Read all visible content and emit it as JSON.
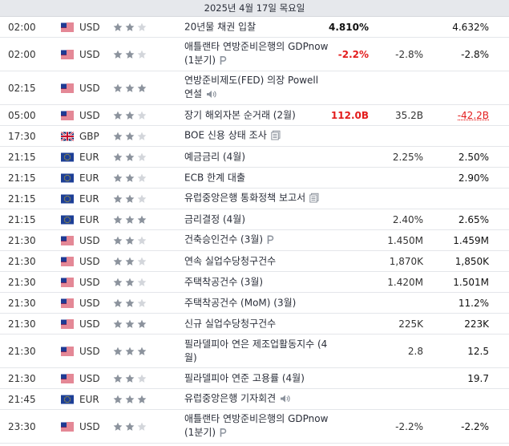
{
  "day_header": "2025년 4월 17일 목요일",
  "colors": {
    "negative": "#e31c1c",
    "star_on": "#8c939d",
    "star_off": "#d3d6db"
  },
  "events": [
    {
      "time": "02:00",
      "flag": "us-flag",
      "currency": "USD",
      "importance": 2,
      "event": "20년물 채권 입찰",
      "icon": "",
      "actual": "4.810%",
      "actual_tone": "pos",
      "forecast": "",
      "previous": "4.632%",
      "previous_tone": ""
    },
    {
      "time": "02:00",
      "flag": "us-flag",
      "currency": "USD",
      "importance": 2,
      "event": "애틀랜타 연방준비은행의 GDPnow (1분기)",
      "icon": "preliminary-icon",
      "actual": "-2.2%",
      "actual_tone": "neg",
      "forecast": "-2.8%",
      "previous": "-2.8%",
      "previous_tone": ""
    },
    {
      "time": "02:15",
      "flag": "us-flag",
      "currency": "USD",
      "importance": 3,
      "event": "연방준비제도(FED) 의장 Powell 연설",
      "icon": "speaker-icon",
      "actual": "",
      "actual_tone": "",
      "forecast": "",
      "previous": "",
      "previous_tone": ""
    },
    {
      "time": "05:00",
      "flag": "us-flag",
      "currency": "USD",
      "importance": 2,
      "event": "장기 해외자본 순거래 (2월)",
      "icon": "",
      "actual": "112.0B",
      "actual_tone": "neg",
      "forecast": "35.2B",
      "previous": "-42.2B",
      "previous_tone": "revised"
    },
    {
      "time": "17:30",
      "flag": "gb-flag",
      "currency": "GBP",
      "importance": 2,
      "event": "BOE 신용 상태 조사",
      "icon": "report-icon",
      "actual": "",
      "actual_tone": "",
      "forecast": "",
      "previous": "",
      "previous_tone": ""
    },
    {
      "time": "21:15",
      "flag": "eu-flag",
      "currency": "EUR",
      "importance": 2,
      "event": "예금금리 (4월)",
      "icon": "",
      "actual": "",
      "actual_tone": "",
      "forecast": "2.25%",
      "previous": "2.50%",
      "previous_tone": ""
    },
    {
      "time": "21:15",
      "flag": "eu-flag",
      "currency": "EUR",
      "importance": 2,
      "event": "ECB 한계 대출",
      "icon": "",
      "actual": "",
      "actual_tone": "",
      "forecast": "",
      "previous": "2.90%",
      "previous_tone": ""
    },
    {
      "time": "21:15",
      "flag": "eu-flag",
      "currency": "EUR",
      "importance": 2,
      "event": "유럽중앙은행 통화정책 보고서",
      "icon": "report-icon",
      "actual": "",
      "actual_tone": "",
      "forecast": "",
      "previous": "",
      "previous_tone": ""
    },
    {
      "time": "21:15",
      "flag": "eu-flag",
      "currency": "EUR",
      "importance": 3,
      "event": "금리결정 (4월)",
      "icon": "",
      "actual": "",
      "actual_tone": "",
      "forecast": "2.40%",
      "previous": "2.65%",
      "previous_tone": ""
    },
    {
      "time": "21:30",
      "flag": "us-flag",
      "currency": "USD",
      "importance": 2,
      "event": "건축승인건수 (3월)",
      "icon": "preliminary-icon",
      "actual": "",
      "actual_tone": "",
      "forecast": "1.450M",
      "previous": "1.459M",
      "previous_tone": ""
    },
    {
      "time": "21:30",
      "flag": "us-flag",
      "currency": "USD",
      "importance": 2,
      "event": "연속 실업수당청구건수",
      "icon": "",
      "actual": "",
      "actual_tone": "",
      "forecast": "1,870K",
      "previous": "1,850K",
      "previous_tone": ""
    },
    {
      "time": "21:30",
      "flag": "us-flag",
      "currency": "USD",
      "importance": 2,
      "event": "주택착공건수 (3월)",
      "icon": "",
      "actual": "",
      "actual_tone": "",
      "forecast": "1.420M",
      "previous": "1.501M",
      "previous_tone": ""
    },
    {
      "time": "21:30",
      "flag": "us-flag",
      "currency": "USD",
      "importance": 2,
      "event": "주택착공건수 (MoM) (3월)",
      "icon": "",
      "actual": "",
      "actual_tone": "",
      "forecast": "",
      "previous": "11.2%",
      "previous_tone": ""
    },
    {
      "time": "21:30",
      "flag": "us-flag",
      "currency": "USD",
      "importance": 3,
      "event": "신규 실업수당청구건수",
      "icon": "",
      "actual": "",
      "actual_tone": "",
      "forecast": "225K",
      "previous": "223K",
      "previous_tone": ""
    },
    {
      "time": "21:30",
      "flag": "us-flag",
      "currency": "USD",
      "importance": 3,
      "event": "필라델피아 연은 제조업활동지수 (4월)",
      "icon": "",
      "actual": "",
      "actual_tone": "",
      "forecast": "2.8",
      "previous": "12.5",
      "previous_tone": ""
    },
    {
      "time": "21:30",
      "flag": "us-flag",
      "currency": "USD",
      "importance": 2,
      "event": "필라델피아 연준 고용률 (4월)",
      "icon": "",
      "actual": "",
      "actual_tone": "",
      "forecast": "",
      "previous": "19.7",
      "previous_tone": ""
    },
    {
      "time": "21:45",
      "flag": "eu-flag",
      "currency": "EUR",
      "importance": 3,
      "event": "유럽중앙은행 기자회견",
      "icon": "speaker-icon",
      "actual": "",
      "actual_tone": "",
      "forecast": "",
      "previous": "",
      "previous_tone": ""
    },
    {
      "time": "23:30",
      "flag": "us-flag",
      "currency": "USD",
      "importance": 2,
      "event": "애틀랜타 연방준비은행의 GDPnow (1분기)",
      "icon": "preliminary-icon",
      "actual": "",
      "actual_tone": "",
      "forecast": "-2.2%",
      "previous": "-2.2%",
      "previous_tone": ""
    }
  ]
}
